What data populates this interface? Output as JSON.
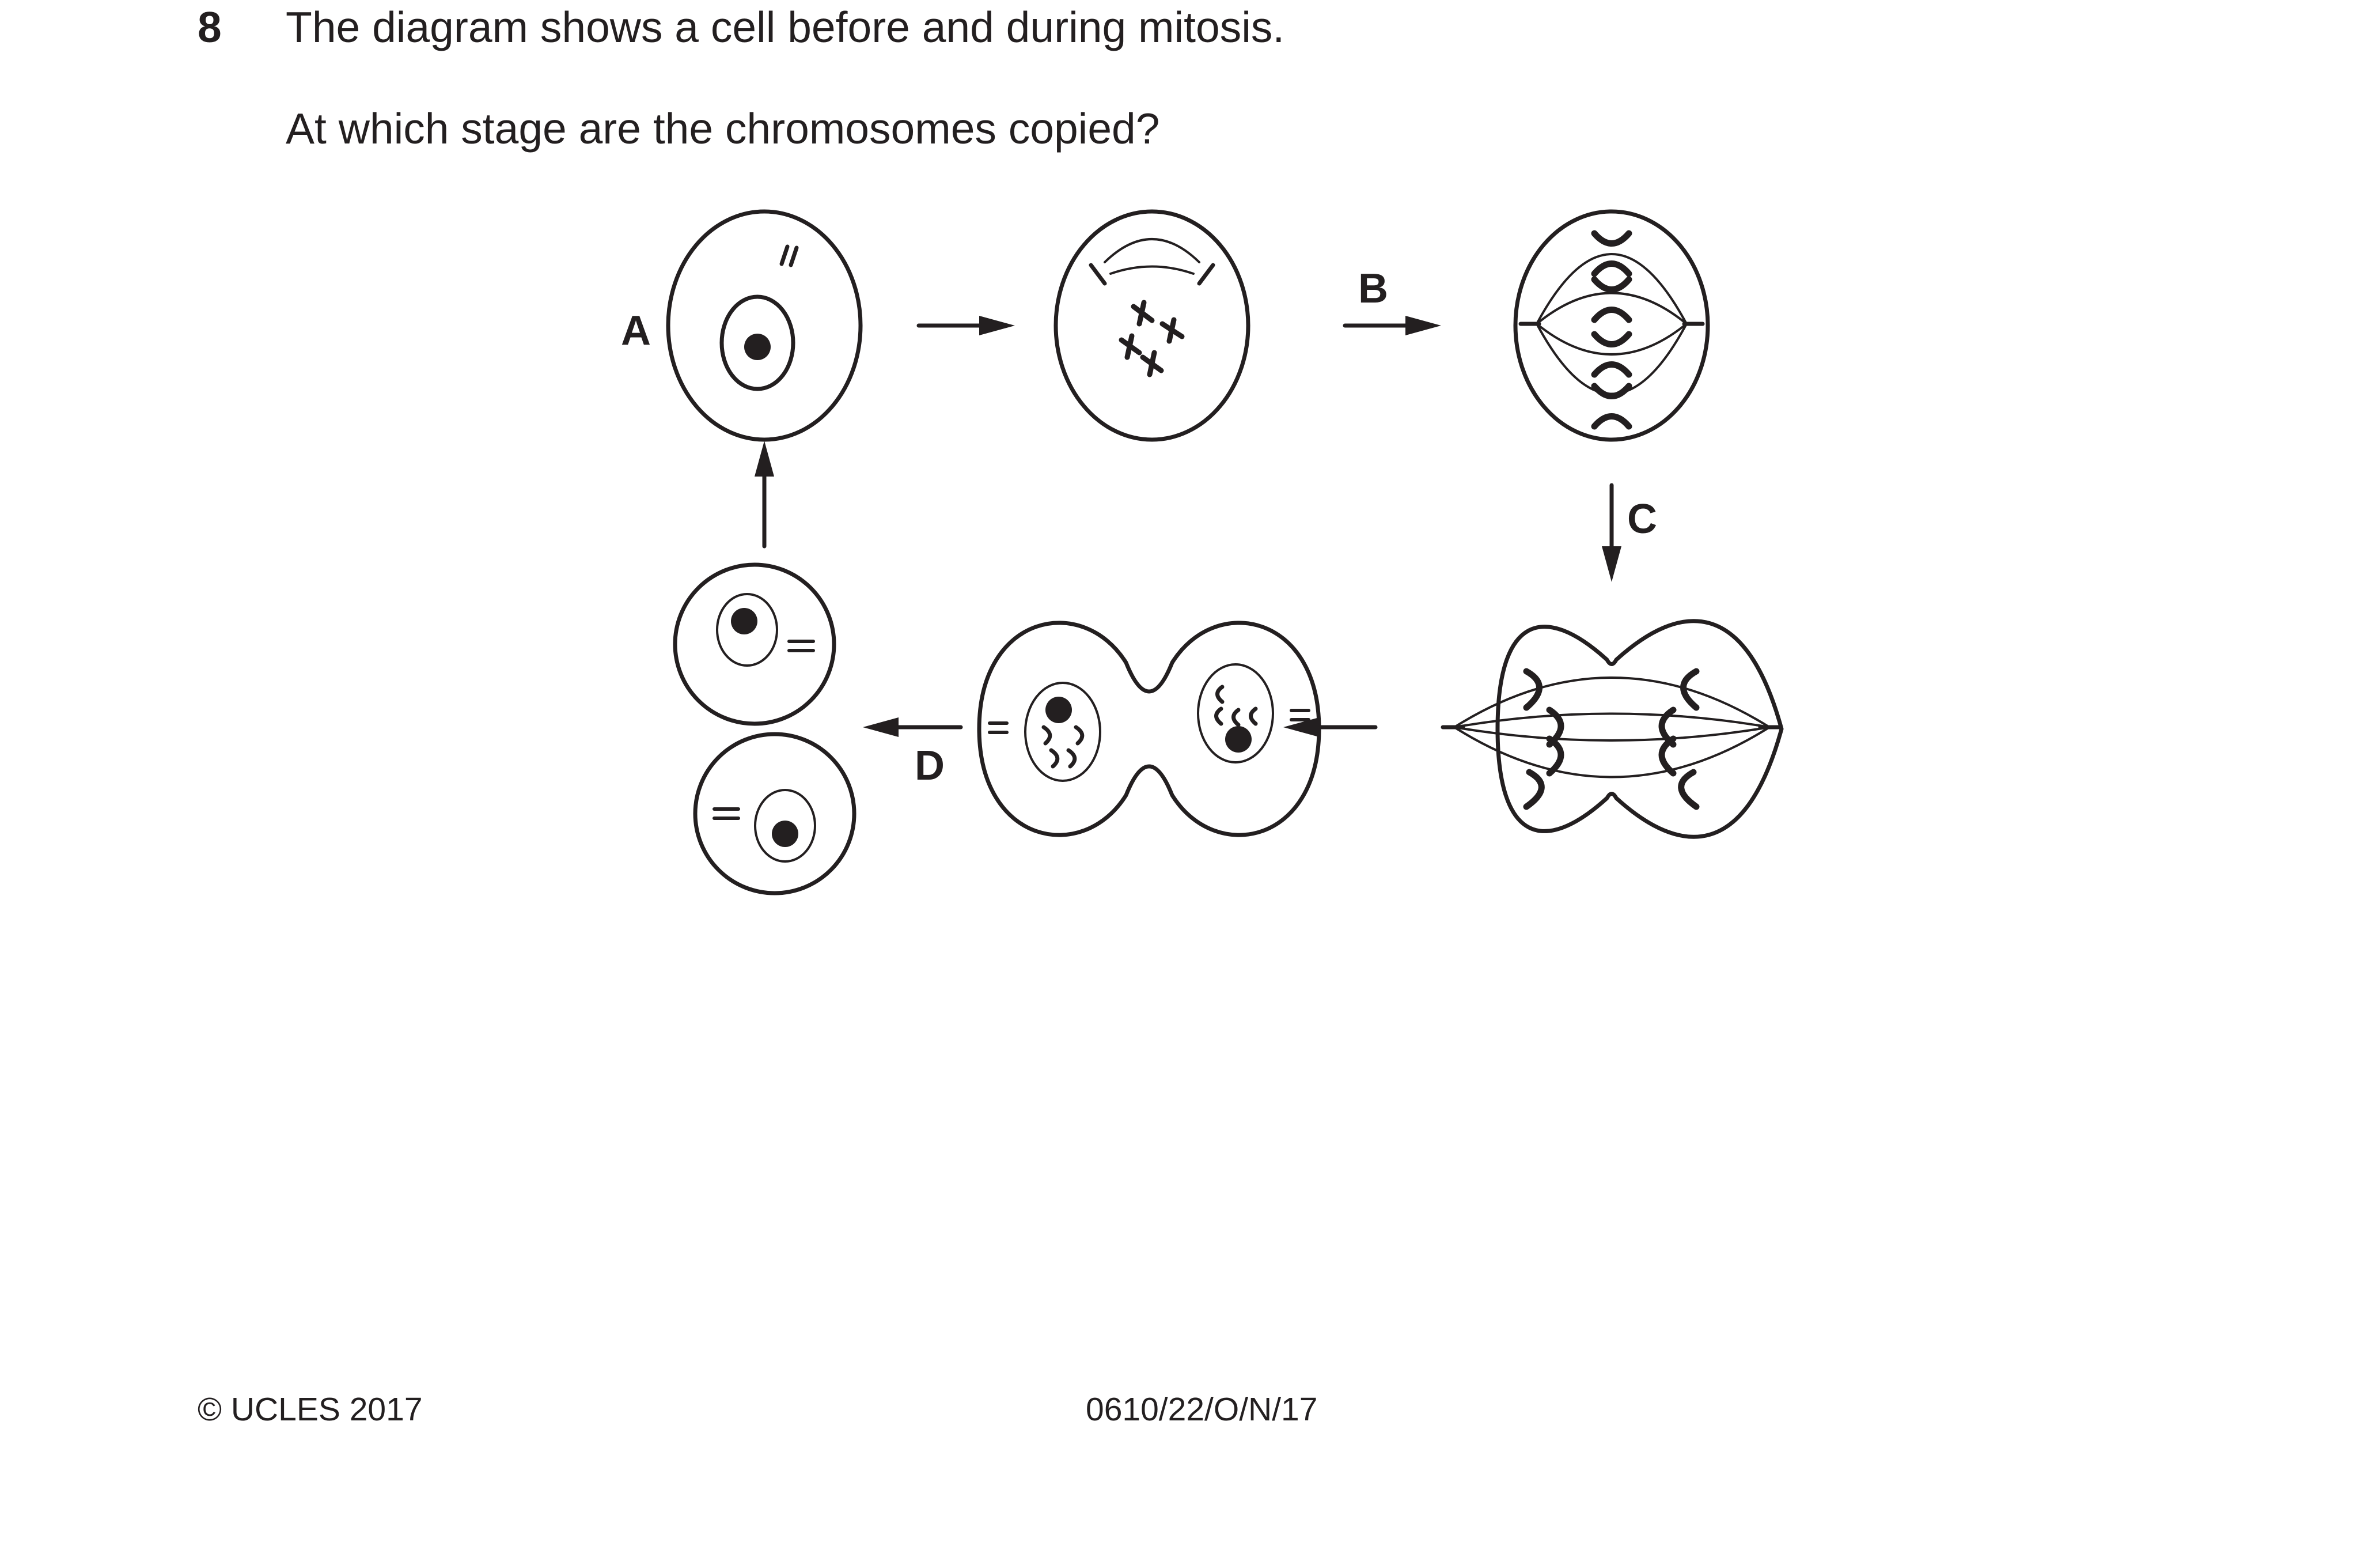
{
  "question": {
    "number": "8",
    "line1": "The diagram shows a cell before and during mitosis.",
    "line2": "At which stage are the chromosomes copied?"
  },
  "diagram": {
    "labels": {
      "a": "A",
      "b": "B",
      "c": "C",
      "d": "D"
    }
  },
  "footer": {
    "copyright": "© UCLES 2017",
    "code": "0610/22/O/N/17"
  }
}
